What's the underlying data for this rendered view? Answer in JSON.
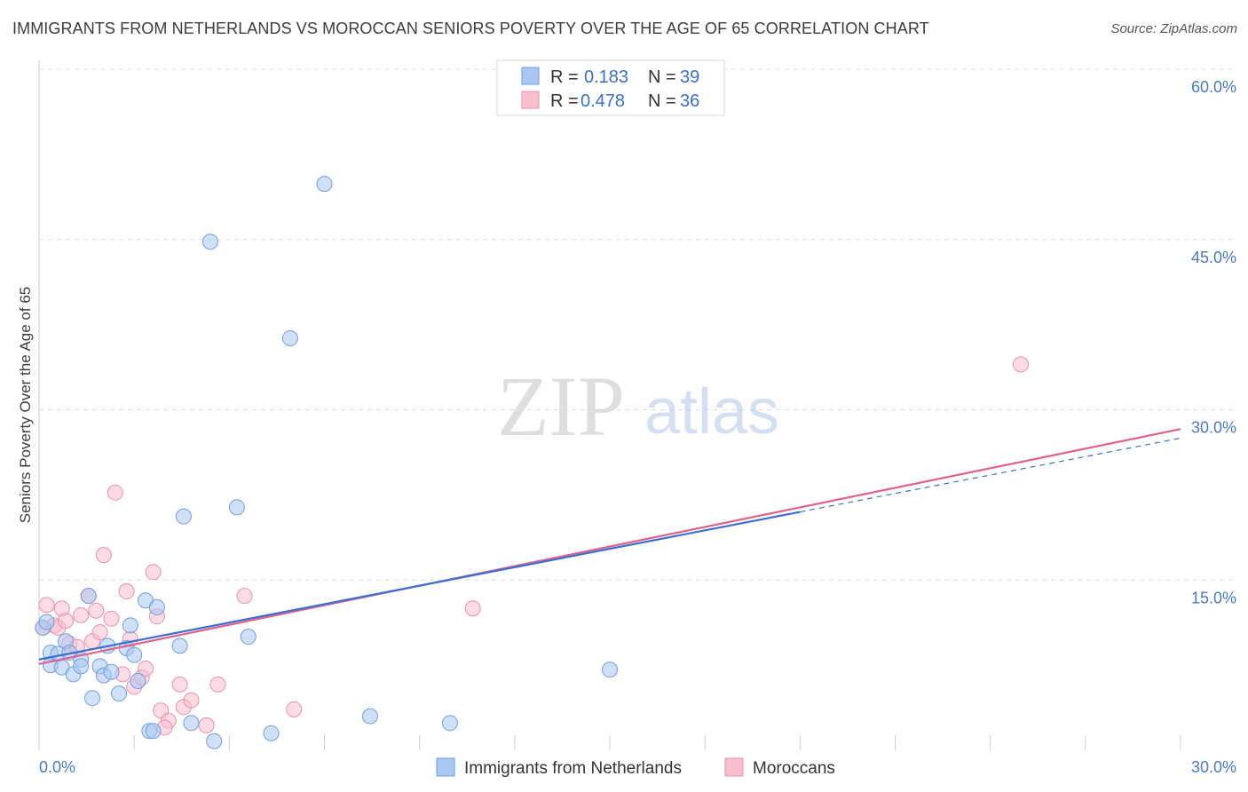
{
  "title": "IMMIGRANTS FROM NETHERLANDS VS MOROCCAN SENIORS POVERTY OVER THE AGE OF 65 CORRELATION CHART",
  "source": "Source: ZipAtlas.com",
  "watermark": {
    "zip": "ZIP",
    "atlas": "atlas"
  },
  "colors": {
    "netherlands_fill": "#a9c7f2",
    "netherlands_stroke": "#6f9fe0",
    "netherlands_line": "#3c6fcf",
    "moroccans_fill": "#f7bfd0",
    "moroccans_stroke": "#ee8fae",
    "moroccans_line": "#e0608e",
    "tick_text": "#4a78c8",
    "grid": "#dcdcdc"
  },
  "legend": {
    "r_label": "R =",
    "n_label": "N =",
    "rows": [
      {
        "r": "0.183",
        "n": "39"
      },
      {
        "r": "0.478",
        "n": "36"
      }
    ]
  },
  "chart_data": {
    "type": "scatter",
    "title": "IMMIGRANTS FROM NETHERLANDS VS MOROCCAN SENIORS POVERTY OVER THE AGE OF 65 CORRELATION CHART",
    "xlabel": "",
    "ylabel": "Seniors Poverty Over the Age of 65",
    "xlim": [
      0,
      30
    ],
    "ylim": [
      0,
      60
    ],
    "x_tick_labels": [
      "0.0%",
      "30.0%"
    ],
    "y_ticks": [
      15,
      30,
      45,
      60
    ],
    "y_tick_labels": [
      "15.0%",
      "30.0%",
      "45.0%",
      "60.0%"
    ],
    "grid": true,
    "series": [
      {
        "name": "Immigrants from Netherlands",
        "r": 0.183,
        "n": 39,
        "trend": {
          "x0": 0,
          "y0": 8.0,
          "x1": 20,
          "y1": 21.0,
          "dashed_to_x": 30,
          "dashed_to_y": 27.5
        },
        "points": [
          [
            0.1,
            10.8
          ],
          [
            0.3,
            8.6
          ],
          [
            0.3,
            7.5
          ],
          [
            0.5,
            8.5
          ],
          [
            0.6,
            7.3
          ],
          [
            0.7,
            9.6
          ],
          [
            0.8,
            8.6
          ],
          [
            0.9,
            6.7
          ],
          [
            1.1,
            8.0
          ],
          [
            1.1,
            7.4
          ],
          [
            1.3,
            13.6
          ],
          [
            1.4,
            4.6
          ],
          [
            1.6,
            7.4
          ],
          [
            1.7,
            6.6
          ],
          [
            1.8,
            9.2
          ],
          [
            1.9,
            6.9
          ],
          [
            2.1,
            5.0
          ],
          [
            2.3,
            9.0
          ],
          [
            2.4,
            11.0
          ],
          [
            2.5,
            8.4
          ],
          [
            2.6,
            6.1
          ],
          [
            2.8,
            13.2
          ],
          [
            2.9,
            1.7
          ],
          [
            3.1,
            12.6
          ],
          [
            3.0,
            1.7
          ],
          [
            3.7,
            9.2
          ],
          [
            3.8,
            20.6
          ],
          [
            4.0,
            2.4
          ],
          [
            4.6,
            0.8
          ],
          [
            4.5,
            44.8
          ],
          [
            5.2,
            21.4
          ],
          [
            5.5,
            10.0
          ],
          [
            6.1,
            1.5
          ],
          [
            6.6,
            36.3
          ],
          [
            7.5,
            49.9
          ],
          [
            8.7,
            3.0
          ],
          [
            10.8,
            2.4
          ],
          [
            15.0,
            7.1
          ],
          [
            0.2,
            11.3
          ]
        ]
      },
      {
        "name": "Moroccans",
        "r": 0.478,
        "n": 36,
        "trend": {
          "x0": 0,
          "y0": 7.6,
          "x1": 30,
          "y1": 28.3
        },
        "points": [
          [
            0.1,
            10.8
          ],
          [
            0.2,
            12.8
          ],
          [
            0.4,
            11.0
          ],
          [
            0.5,
            10.8
          ],
          [
            0.6,
            12.5
          ],
          [
            0.7,
            11.4
          ],
          [
            0.8,
            9.4
          ],
          [
            1.0,
            9.1
          ],
          [
            1.1,
            11.9
          ],
          [
            1.3,
            13.6
          ],
          [
            1.4,
            9.6
          ],
          [
            1.5,
            12.3
          ],
          [
            1.6,
            10.4
          ],
          [
            1.7,
            17.2
          ],
          [
            1.9,
            11.6
          ],
          [
            2.0,
            22.7
          ],
          [
            2.2,
            6.7
          ],
          [
            2.3,
            14.0
          ],
          [
            2.4,
            9.8
          ],
          [
            2.5,
            5.6
          ],
          [
            2.7,
            6.4
          ],
          [
            2.8,
            7.2
          ],
          [
            3.0,
            15.7
          ],
          [
            3.1,
            11.8
          ],
          [
            3.2,
            3.5
          ],
          [
            3.4,
            2.6
          ],
          [
            3.3,
            2.0
          ],
          [
            3.7,
            5.8
          ],
          [
            3.8,
            3.8
          ],
          [
            4.0,
            4.4
          ],
          [
            4.4,
            2.2
          ],
          [
            4.7,
            5.8
          ],
          [
            5.4,
            13.6
          ],
          [
            6.7,
            3.6
          ],
          [
            11.4,
            12.5
          ],
          [
            25.8,
            34.0
          ]
        ]
      }
    ]
  }
}
